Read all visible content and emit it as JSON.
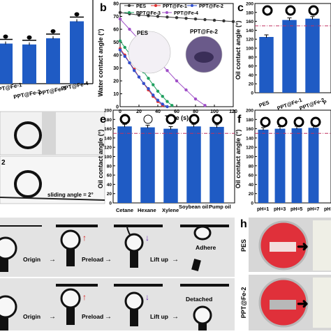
{
  "panel_a": {
    "tick_labels": [
      "PT@Fe-1",
      "PPT@Fe-2",
      "PPT@Fe-3",
      "PPT@Fe-4"
    ],
    "chart_data": {
      "type": "bar",
      "categories": [
        "PT@Fe-1",
        "PPT@Fe-2",
        "PPT@Fe-3",
        "PPT@Fe-4"
      ],
      "values": [
        45,
        44,
        51,
        70
      ],
      "ylim": [
        0,
        90
      ]
    }
  },
  "panel_a_photos": {
    "sliding_angle": "sliding angle = 2°",
    "fragment_label": "2"
  },
  "panel_b": {
    "letter": "b",
    "ylabel": "Water contact angle (°)",
    "xlabel": "Time (s)",
    "legend": [
      "PES",
      "PPT@Fe-1",
      "PPT@Fe-2",
      "PPT@Fe-3",
      "PPT@Fe-4"
    ],
    "legend_colors": [
      "#333333",
      "#e03030",
      "#3050d0",
      "#20a060",
      "#a050c8"
    ],
    "inset_labels": [
      "PES",
      "PPT@Fe-2"
    ],
    "y_ticks": [
      "0",
      "10",
      "20",
      "30",
      "40",
      "50",
      "60",
      "70",
      "80"
    ],
    "x_ticks": [
      "0",
      "20",
      "40",
      "60",
      "80",
      "100",
      "120"
    ],
    "chart_data": {
      "type": "line",
      "xlim": [
        0,
        120
      ],
      "ylim": [
        0,
        80
      ],
      "series": [
        {
          "name": "PES",
          "x": [
            0,
            10,
            20,
            30,
            40,
            50,
            60,
            70,
            80,
            90,
            100,
            110,
            120
          ],
          "values": [
            73,
            72,
            71,
            70.5,
            70,
            69.5,
            69,
            68.5,
            68,
            67.5,
            67,
            66.5,
            66
          ]
        },
        {
          "name": "PPT@Fe-1",
          "x": [
            0,
            5,
            10,
            15,
            20,
            25,
            30,
            35,
            40,
            45
          ],
          "values": [
            45,
            40,
            34,
            29,
            23,
            18,
            13,
            8,
            4,
            1
          ]
        },
        {
          "name": "PPT@Fe-2",
          "x": [
            0,
            5,
            10,
            15,
            20,
            25,
            30,
            35,
            40,
            45,
            50
          ],
          "values": [
            44,
            39,
            34,
            28,
            23,
            18,
            14,
            9,
            5,
            2,
            0
          ]
        },
        {
          "name": "PPT@Fe-3",
          "x": [
            0,
            5,
            10,
            15,
            20,
            25,
            30,
            35,
            40,
            45,
            50,
            55
          ],
          "values": [
            51,
            46,
            41,
            36,
            31,
            27,
            22,
            17,
            12,
            8,
            4,
            1
          ]
        },
        {
          "name": "PPT@Fe-4",
          "x": [
            0,
            10,
            20,
            30,
            40,
            50,
            60,
            70,
            80,
            90
          ],
          "values": [
            68,
            60,
            52,
            44,
            36,
            28,
            20,
            13,
            6,
            1
          ]
        }
      ]
    }
  },
  "panel_c": {
    "letter": "c",
    "ylabel": "Oil contact angle (°)",
    "tick_labels": [
      "PES",
      "PPT@Fe-1",
      "PPT@Fe-2",
      "P"
    ],
    "y_ticks": [
      "0",
      "20",
      "40",
      "60",
      "80",
      "100",
      "120",
      "140",
      "160",
      "180",
      "200"
    ],
    "chart_data": {
      "type": "bar",
      "categories": [
        "PES",
        "PPT@Fe-1",
        "PPT@Fe-2"
      ],
      "values": [
        125,
        163,
        166
      ],
      "ylim": [
        0,
        200
      ],
      "reference_line": 150
    }
  },
  "panel_e": {
    "letter": "e",
    "ylabel": "Oil contact angle (°)",
    "tick_labels": [
      "Cetane",
      "Hexane",
      "Xylene",
      "Soybean oil",
      "Pump oil"
    ],
    "y_ticks": [
      "0",
      "20",
      "40",
      "60",
      "80",
      "100",
      "120",
      "140",
      "160",
      "180",
      "200"
    ],
    "chart_data": {
      "type": "bar",
      "categories": [
        "Cetane",
        "Hexane",
        "Xylene",
        "Soybean oil",
        "Pump oil"
      ],
      "values": [
        165,
        163,
        160,
        165,
        164
      ],
      "ylim": [
        0,
        200
      ],
      "reference_line": 150
    }
  },
  "panel_f": {
    "letter": "f",
    "ylabel": "Oil contact angle (°)",
    "tick_labels": [
      "pH=1",
      "pH=3",
      "pH=5",
      "pH=7",
      "pH"
    ],
    "y_ticks": [
      "0",
      "20",
      "40",
      "60",
      "80",
      "100",
      "120",
      "140",
      "160",
      "180",
      "200"
    ],
    "chart_data": {
      "type": "bar",
      "categories": [
        "pH=1",
        "pH=3",
        "pH=5",
        "pH=7"
      ],
      "values": [
        158,
        160,
        161,
        162
      ],
      "ylim": [
        0,
        200
      ],
      "reference_line": 150
    }
  },
  "panel_g": {
    "row1": [
      "Origin",
      "Preload",
      "Lift up",
      "Adhere"
    ],
    "row2": [
      "Origin",
      "Preload",
      "Lift up",
      "Detached"
    ]
  },
  "panel_h": {
    "letter": "h",
    "row_labels": [
      "PES",
      "PPT@Fe-2"
    ]
  },
  "colors": {
    "bar": "#1f5bc4",
    "ref_line": "#c03060",
    "dish": "#e0303a"
  }
}
